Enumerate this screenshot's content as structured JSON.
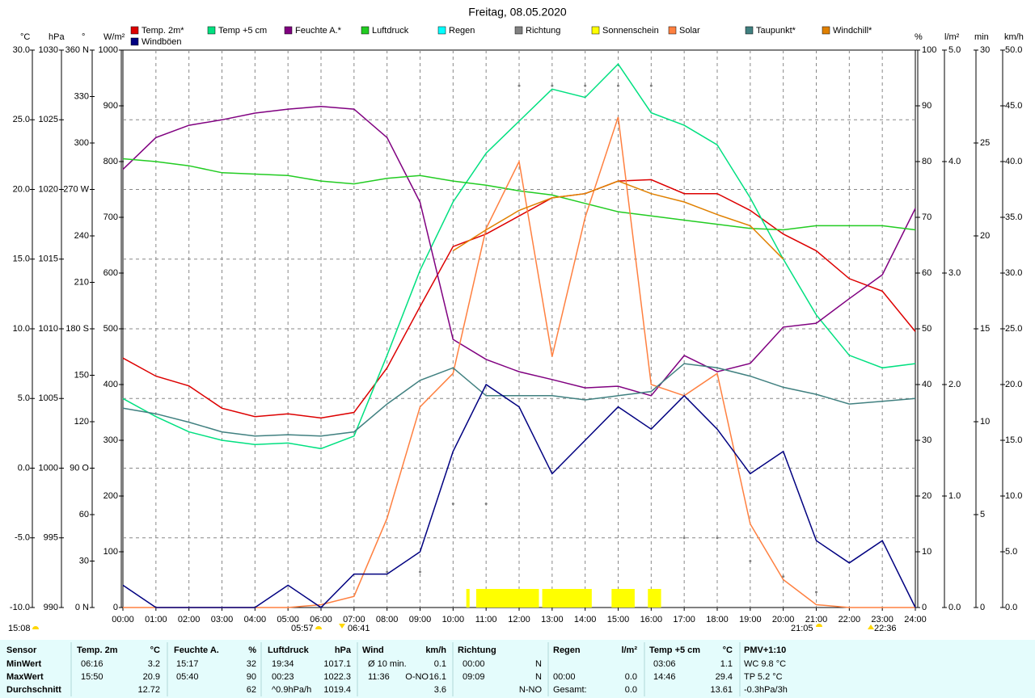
{
  "chart_data": {
    "type": "line",
    "title": "Freitag, 08.05.2020",
    "grid": true,
    "grid_axis": "temp",
    "xlim": [
      0,
      24
    ],
    "xticks": [
      {
        "value": 0,
        "label": "00:00"
      },
      {
        "value": 1,
        "label": "01:00"
      },
      {
        "value": 2,
        "label": "02:00"
      },
      {
        "value": 3,
        "label": "03:00"
      },
      {
        "value": 4,
        "label": "04:00"
      },
      {
        "value": 5,
        "label": "05:00"
      },
      {
        "value": 6,
        "label": "06:00"
      },
      {
        "value": 7,
        "label": "07:00"
      },
      {
        "value": 8,
        "label": "08:00"
      },
      {
        "value": 9,
        "label": "09:00"
      },
      {
        "value": 10,
        "label": "10:00"
      },
      {
        "value": 11,
        "label": "11:00"
      },
      {
        "value": 12,
        "label": "12:00"
      },
      {
        "value": 13,
        "label": "13:00"
      },
      {
        "value": 14,
        "label": "14:00"
      },
      {
        "value": 15,
        "label": "15:00"
      },
      {
        "value": 16,
        "label": "16:00"
      },
      {
        "value": 17,
        "label": "17:00"
      },
      {
        "value": 18,
        "label": "18:00"
      },
      {
        "value": 19,
        "label": "19:00"
      },
      {
        "value": 20,
        "label": "20:00"
      },
      {
        "value": 21,
        "label": "21:00"
      },
      {
        "value": 22,
        "label": "22:00"
      },
      {
        "value": 23,
        "label": "23:00"
      },
      {
        "value": 24,
        "label": "24:00"
      }
    ],
    "x": [
      0,
      1,
      2,
      3,
      4,
      5,
      6,
      7,
      8,
      9,
      10,
      11,
      12,
      13,
      14,
      15,
      16,
      17,
      18,
      19,
      20,
      21,
      22,
      23,
      24
    ],
    "axes": [
      {
        "id": "temp",
        "unit": "°C",
        "side": "left",
        "color": "#cc0000",
        "lim": [
          -10,
          30
        ],
        "ticks": [
          {
            "value": -10,
            "label": "-10.0"
          },
          {
            "value": -5,
            "label": "-5.0"
          },
          {
            "value": 0,
            "label": "0.0"
          },
          {
            "value": 5,
            "label": "5.0"
          },
          {
            "value": 10,
            "label": "10.0"
          },
          {
            "value": 15,
            "label": "15.0"
          },
          {
            "value": 20,
            "label": "20.0"
          },
          {
            "value": 25,
            "label": "25.0"
          },
          {
            "value": 30,
            "label": "30.0"
          }
        ]
      },
      {
        "id": "hpa",
        "unit": "hPa",
        "side": "left",
        "color": "#00b000",
        "lim": [
          990,
          1030
        ],
        "ticks": [
          990,
          995,
          1000,
          1005,
          1010,
          1015,
          1020,
          1025,
          1030
        ]
      },
      {
        "id": "deg",
        "unit": "°",
        "side": "left",
        "color": "#404040",
        "lim": [
          0,
          360
        ],
        "ticks": [
          {
            "value": 0,
            "label": "0 N"
          },
          30,
          60,
          {
            "value": 90,
            "label": "90 O"
          },
          120,
          150,
          {
            "value": 180,
            "label": "180 S"
          },
          210,
          240,
          {
            "value": 270,
            "label": "270 W"
          },
          300,
          330,
          {
            "value": 360,
            "label": "360 N"
          }
        ]
      },
      {
        "id": "wm2",
        "unit": "W/m²",
        "side": "left",
        "color": "#e06020",
        "lim": [
          0,
          1000
        ],
        "ticks": [
          0,
          100,
          200,
          300,
          400,
          500,
          600,
          700,
          800,
          900,
          1000
        ]
      },
      {
        "id": "pct",
        "unit": "%",
        "side": "right",
        "color": "#800080",
        "lim": [
          0,
          100
        ],
        "ticks": [
          0,
          10,
          20,
          30,
          40,
          50,
          60,
          70,
          80,
          90,
          100
        ]
      },
      {
        "id": "rain",
        "unit": "l/m²",
        "side": "right",
        "color": "#00cccc",
        "lim": [
          0,
          5
        ],
        "ticks": [
          {
            "value": 0,
            "label": "0.0"
          },
          {
            "value": 1,
            "label": "1.0"
          },
          {
            "value": 2,
            "label": "2.0"
          },
          {
            "value": 3,
            "label": "3.0"
          },
          {
            "value": 4,
            "label": "4.0"
          },
          {
            "value": 5,
            "label": "5.0"
          }
        ]
      },
      {
        "id": "min",
        "unit": "min",
        "side": "right",
        "color": "#e0e000",
        "lim": [
          0,
          30
        ],
        "ticks": [
          0,
          5,
          10,
          15,
          20,
          25,
          30
        ]
      },
      {
        "id": "kmh",
        "unit": "km/h",
        "side": "right",
        "color": "#000080",
        "lim": [
          0,
          50
        ],
        "ticks": [
          {
            "value": 0,
            "label": "0.0"
          },
          {
            "value": 5,
            "label": "5.0"
          },
          {
            "value": 10,
            "label": "10.0"
          },
          {
            "value": 15,
            "label": "15.0"
          },
          {
            "value": 20,
            "label": "20.0"
          },
          {
            "value": 25,
            "label": "25.0"
          },
          {
            "value": 30,
            "label": "30.0"
          },
          {
            "value": 35,
            "label": "35.0"
          },
          {
            "value": 40,
            "label": "40.0"
          },
          {
            "value": 45,
            "label": "45.0"
          },
          {
            "value": 50,
            "label": "50.0"
          }
        ]
      }
    ],
    "series": [
      {
        "name": "Temp. 2m*",
        "color": "#dd0000",
        "axis": "temp",
        "style": "line",
        "values": [
          7.9,
          6.6,
          5.9,
          4.3,
          3.7,
          3.9,
          3.6,
          4.0,
          7.2,
          11.6,
          15.9,
          16.8,
          18.1,
          19.4,
          19.7,
          20.6,
          20.7,
          19.7,
          19.7,
          18.5,
          16.8,
          15.6,
          13.6,
          12.7,
          9.8
        ]
      },
      {
        "name": "Temp +5 cm",
        "color": "#00e080",
        "axis": "temp",
        "style": "line",
        "values": [
          5.0,
          3.7,
          2.6,
          2.0,
          1.7,
          1.8,
          1.4,
          2.3,
          8.1,
          14.2,
          19.1,
          22.6,
          24.9,
          27.2,
          26.6,
          29.0,
          25.5,
          24.6,
          23.2,
          19.4,
          15.0,
          11.0,
          8.1,
          7.2,
          7.5
        ]
      },
      {
        "name": "Feuchte A.*",
        "color": "#800080",
        "axis": "pct",
        "style": "line",
        "values": [
          78.6,
          84.3,
          86.5,
          87.5,
          88.7,
          89.4,
          89.9,
          89.4,
          84.3,
          72.7,
          48.1,
          44.5,
          42.3,
          40.9,
          39.4,
          39.7,
          38.0,
          45.2,
          42.3,
          43.8,
          50.3,
          51.0,
          55.4,
          59.7,
          71.6
        ]
      },
      {
        "name": "Luftdruck",
        "color": "#22cc22",
        "axis": "hpa",
        "style": "line",
        "values": [
          1022.2,
          1022.0,
          1021.7,
          1021.2,
          1021.1,
          1021.0,
          1020.6,
          1020.4,
          1020.8,
          1021.0,
          1020.6,
          1020.3,
          1019.9,
          1019.6,
          1019.0,
          1018.4,
          1018.1,
          1017.8,
          1017.5,
          1017.2,
          1017.1,
          1017.4,
          1017.4,
          1017.4,
          1017.1
        ]
      },
      {
        "name": "Regen",
        "color": "#00ffff",
        "axis": "rain",
        "style": "none"
      },
      {
        "name": "Richtung",
        "color": "#808080",
        "axis": "deg",
        "style": "dots",
        "values": [
          null,
          null,
          null,
          null,
          null,
          null,
          null,
          null,
          23,
          23,
          67,
          67,
          337,
          337,
          337,
          337,
          337,
          45,
          45,
          30,
          20,
          10,
          null,
          null,
          null
        ]
      },
      {
        "name": "Sonnenschein",
        "color": "#ffff00",
        "axis": "min",
        "style": "bars",
        "x": [
          10.4,
          10.7,
          12.7,
          14.8,
          15.9
        ],
        "x_end": [
          10.5,
          12.6,
          14.2,
          15.5,
          16.3
        ],
        "values": [
          1,
          1,
          1,
          1,
          1
        ]
      },
      {
        "name": "Solar",
        "color": "#ff8040",
        "axis": "wm2",
        "style": "line",
        "values": [
          0,
          0,
          0,
          0,
          0,
          0,
          5,
          20,
          160,
          360,
          420,
          680,
          800,
          450,
          700,
          880,
          400,
          380,
          420,
          150,
          50,
          5,
          0,
          0,
          0
        ]
      },
      {
        "name": "Taupunkt*",
        "color": "#408080",
        "axis": "temp",
        "style": "line",
        "values": [
          4.3,
          3.9,
          3.3,
          2.6,
          2.3,
          2.4,
          2.3,
          2.6,
          4.6,
          6.3,
          7.2,
          5.2,
          5.2,
          5.2,
          4.9,
          5.2,
          5.5,
          7.5,
          7.2,
          6.6,
          5.8,
          5.3,
          4.6,
          4.8,
          5.0
        ]
      },
      {
        "name": "Windchill*",
        "color": "#e08000",
        "axis": "temp",
        "style": "line",
        "values": [
          null,
          null,
          null,
          null,
          null,
          null,
          null,
          null,
          null,
          null,
          15.6,
          17.1,
          18.5,
          19.4,
          19.7,
          20.6,
          19.7,
          19.1,
          18.2,
          17.4,
          15.0,
          null,
          null,
          null,
          null
        ]
      },
      {
        "name": "Windböen",
        "color": "#000080",
        "axis": "kmh",
        "style": "line",
        "values": [
          2,
          0,
          0,
          0,
          0,
          2,
          0,
          3,
          3,
          5,
          14,
          20,
          18,
          12,
          15,
          18,
          16,
          19,
          16,
          12,
          14,
          6,
          4,
          6,
          0
        ]
      }
    ],
    "annotations": [
      "15:08",
      "05:57",
      "06:41",
      "21:05",
      "22:36"
    ]
  },
  "summary": {
    "header": [
      "Sensor",
      "Temp. 2m",
      "°C",
      "Feuchte A.",
      "%",
      "Luftdruck",
      "hPa",
      "Wind",
      "km/h",
      "Richtung",
      "Regen",
      "l/m²",
      "Temp +5 cm",
      "°C",
      "PMV+1:10"
    ],
    "rows": [
      [
        "MinWert",
        "06:16",
        "3.2",
        "15:17",
        "32",
        "19:34",
        "1017.1",
        "Ø 10 min.",
        null,
        "0.1",
        "00:00",
        "N",
        null,
        null,
        "03:06",
        "1.1",
        "WC 9.8 °C"
      ],
      [
        "MaxWert",
        "15:50",
        "20.9",
        "05:40",
        "90",
        "00:23",
        "1022.3",
        "11:36",
        "O-NO",
        "16.1",
        "09:09",
        "N",
        "00:00",
        "0.0",
        "14:46",
        "29.4",
        "TP 5.2 °C"
      ],
      [
        "Durchschnitt",
        null,
        "12.72",
        null,
        "62",
        "^0.9hPa/h",
        "1019.4",
        null,
        null,
        "3.6",
        null,
        "N-NO",
        "Gesamt:",
        "0.0",
        null,
        "13.61",
        "-0.3hPa/3h"
      ]
    ]
  }
}
